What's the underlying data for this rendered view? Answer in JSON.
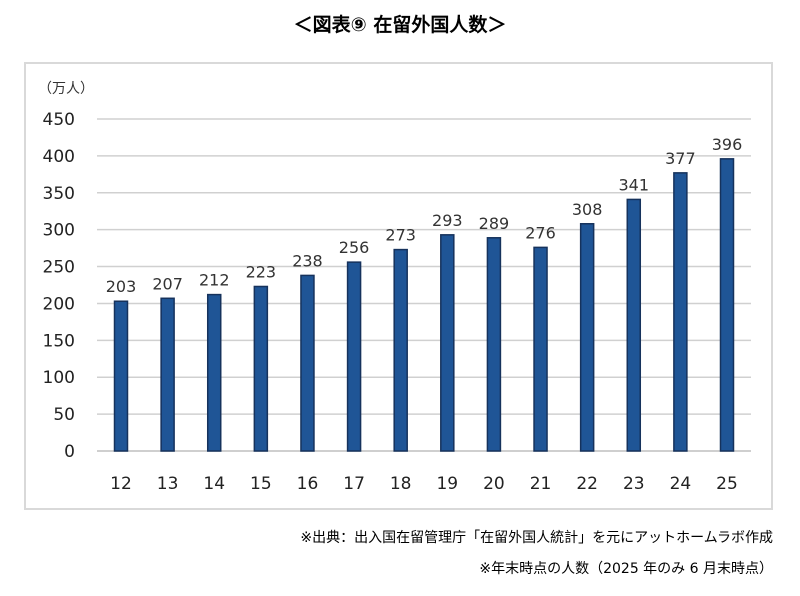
{
  "title": "＜図表⑨ 在留外国人数＞",
  "chart_data": {
    "type": "bar",
    "title": "在留外国人数",
    "ylabel": "（万人）",
    "xlabel": "",
    "categories": [
      "12",
      "13",
      "14",
      "15",
      "16",
      "17",
      "18",
      "19",
      "20",
      "21",
      "22",
      "23",
      "24",
      "25"
    ],
    "values": [
      203,
      207,
      212,
      223,
      238,
      256,
      273,
      293,
      289,
      276,
      308,
      341,
      377,
      396
    ],
    "yticks": [
      0,
      50,
      100,
      150,
      200,
      250,
      300,
      350,
      400,
      450
    ],
    "ylim": [
      0,
      450
    ],
    "grid": true,
    "legend": "none",
    "data_labels": true,
    "colors": {
      "bar": "#1f5596",
      "bar_edge": "#16325c",
      "grid": "#d0d0d0"
    }
  },
  "notes": {
    "source": "※出典：出入国在留管理庁「在留外国人統計」を元にアットホームラボ作成",
    "remark": "※年末時点の人数（2025 年のみ 6 月末時点）"
  }
}
